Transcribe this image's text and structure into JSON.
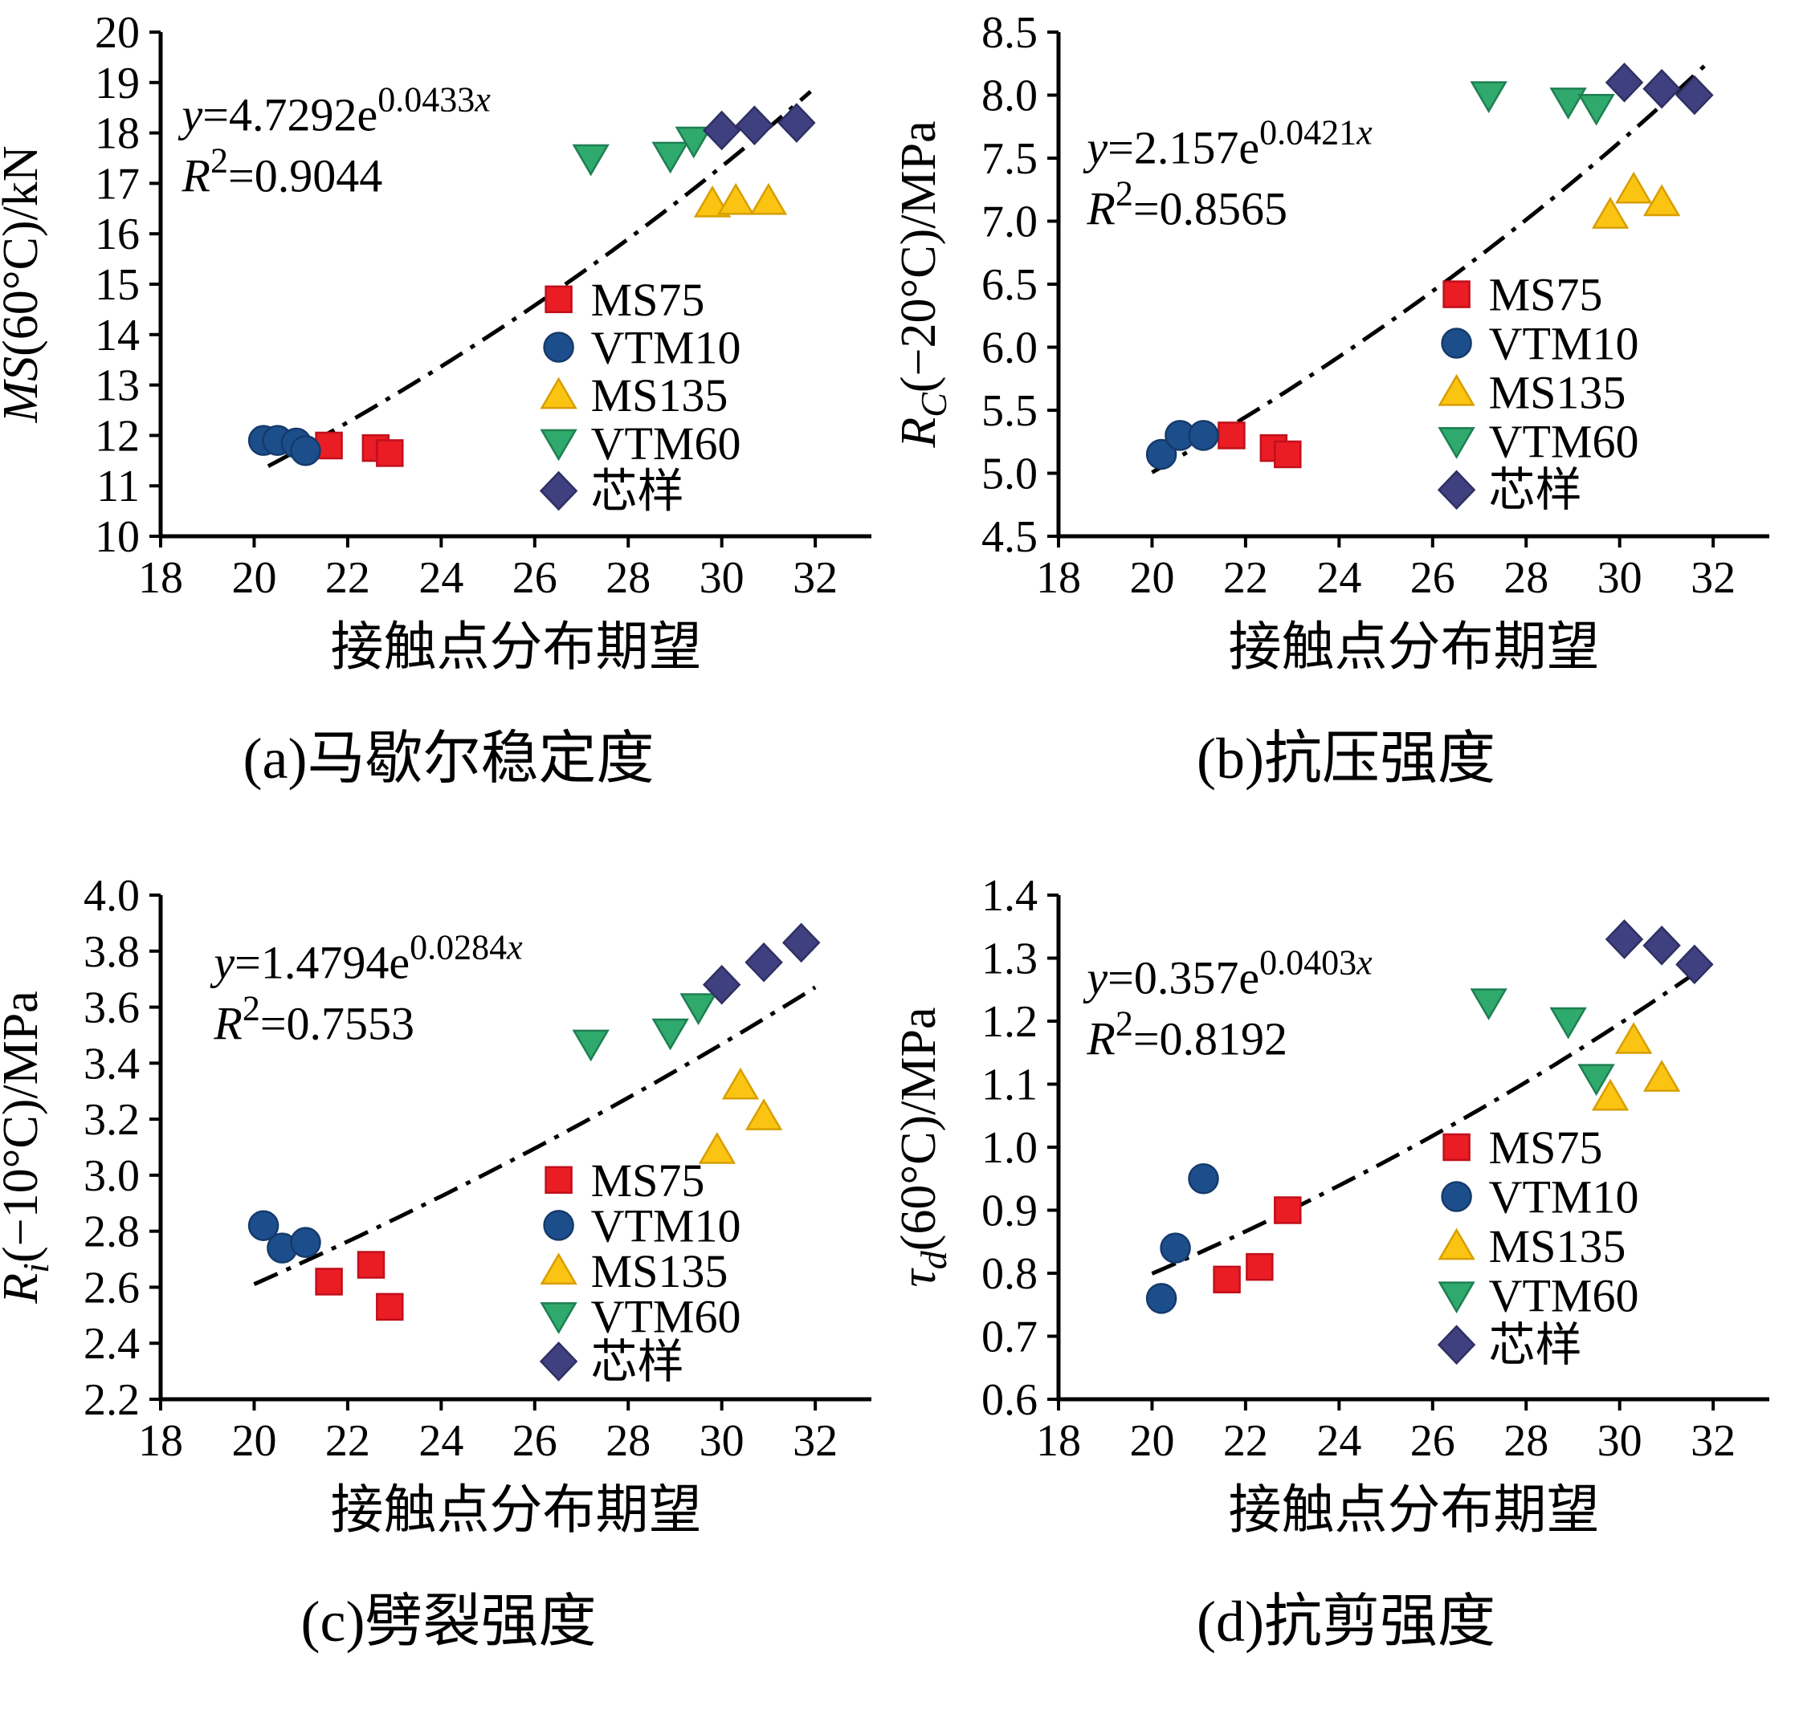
{
  "figure": {
    "background": "#ffffff",
    "line_color": "#000000",
    "marker_colors": {
      "MS75": "#ea1c24",
      "VTM10": "#1d4e8c",
      "MS135": "#fcc412",
      "VTM60": "#2faa6c",
      "core": "#3f4080"
    }
  },
  "chart_data": [
    {
      "id": "a",
      "type": "scatter",
      "caption": "(a)马歇尔稳定度",
      "xlabel": "接触点分布期望",
      "ylabel_segments": [
        {
          "t": "MS",
          "italic": true
        },
        {
          "t": "(60°C)/kN"
        }
      ],
      "equation_segments": [
        {
          "t": "y",
          "italic": true
        },
        {
          "t": "=4.7292e"
        },
        {
          "t": "0.0433",
          "sup": true
        },
        {
          "t": "x",
          "sup": true,
          "italic": true
        }
      ],
      "r2_segments": [
        {
          "t": "R",
          "italic": true
        },
        {
          "t": "2",
          "sup": true
        },
        {
          "t": "=0.9044"
        }
      ],
      "xlim": [
        18,
        33.2
      ],
      "ylim": [
        10,
        20
      ],
      "xticks": [
        18,
        20,
        22,
        24,
        26,
        28,
        30,
        32
      ],
      "yticks": [
        "10",
        "11",
        "12",
        "13",
        "14",
        "15",
        "16",
        "17",
        "18",
        "19",
        "20"
      ],
      "fit": {
        "a": 4.7292,
        "b": 0.0433,
        "x0": 20.3,
        "x1": 31.9
      },
      "eq_pos": [
        0.03,
        0.195
      ],
      "legend": {
        "x": 0.56,
        "y": 0.53,
        "dy": 0.095
      },
      "series": [
        {
          "name": "MS75",
          "marker": "square",
          "color": "#ea1c24",
          "edge": "#c0101c",
          "points": [
            [
              21.6,
              11.8
            ],
            [
              22.6,
              11.75
            ],
            [
              22.9,
              11.65
            ]
          ]
        },
        {
          "name": "VTM10",
          "marker": "circle",
          "color": "#1d4e8c",
          "edge": "#153a6b",
          "points": [
            [
              20.2,
              11.9
            ],
            [
              20.5,
              11.9
            ],
            [
              20.9,
              11.85
            ],
            [
              21.1,
              11.7
            ]
          ]
        },
        {
          "name": "MS135",
          "marker": "triangle-up",
          "color": "#fcc412",
          "edge": "#d79e00",
          "points": [
            [
              29.8,
              16.6
            ],
            [
              30.3,
              16.65
            ],
            [
              31.0,
              16.65
            ]
          ]
        },
        {
          "name": "VTM60",
          "marker": "triangle-down",
          "color": "#2faa6c",
          "edge": "#1e7f52",
          "points": [
            [
              27.2,
              17.5
            ],
            [
              28.9,
              17.55
            ],
            [
              29.4,
              17.85
            ]
          ]
        },
        {
          "name": "芯样",
          "marker": "diamond",
          "color": "#3f4080",
          "edge": "#2f3063",
          "points": [
            [
              30.0,
              18.05
            ],
            [
              30.7,
              18.15
            ],
            [
              31.6,
              18.2
            ]
          ]
        }
      ]
    },
    {
      "id": "b",
      "type": "scatter",
      "caption": "(b)抗压强度",
      "xlabel": "接触点分布期望",
      "ylabel_segments": [
        {
          "t": "R",
          "italic": true
        },
        {
          "t": "C",
          "italic": true,
          "sub": true
        },
        {
          "t": "(−20°C)/MPa"
        }
      ],
      "equation_segments": [
        {
          "t": "y",
          "italic": true
        },
        {
          "t": "=2.157e"
        },
        {
          "t": "0.0421",
          "sup": true
        },
        {
          "t": "x",
          "sup": true,
          "italic": true
        }
      ],
      "r2_segments": [
        {
          "t": "R",
          "italic": true
        },
        {
          "t": "2",
          "sup": true
        },
        {
          "t": "=0.8565"
        }
      ],
      "xlim": [
        18,
        33.2
      ],
      "ylim": [
        4.5,
        8.5
      ],
      "xticks": [
        18,
        20,
        22,
        24,
        26,
        28,
        30,
        32
      ],
      "yticks": [
        "4.5",
        "5.0",
        "5.5",
        "6.0",
        "6.5",
        "7.0",
        "7.5",
        "8.0",
        "8.5"
      ],
      "fit": {
        "a": 2.157,
        "b": 0.0421,
        "x0": 20.0,
        "x1": 31.9
      },
      "eq_pos": [
        0.04,
        0.26
      ],
      "legend": {
        "x": 0.56,
        "y": 0.52,
        "dy": 0.097
      },
      "series": [
        {
          "name": "MS75",
          "marker": "square",
          "color": "#ea1c24",
          "edge": "#c0101c",
          "points": [
            [
              21.7,
              5.3
            ],
            [
              22.6,
              5.2
            ],
            [
              22.9,
              5.15
            ]
          ]
        },
        {
          "name": "VTM10",
          "marker": "circle",
          "color": "#1d4e8c",
          "edge": "#153a6b",
          "points": [
            [
              20.2,
              5.15
            ],
            [
              20.6,
              5.3
            ],
            [
              21.1,
              5.3
            ]
          ]
        },
        {
          "name": "MS135",
          "marker": "triangle-up",
          "color": "#fcc412",
          "edge": "#d79e00",
          "points": [
            [
              29.8,
              7.05
            ],
            [
              30.3,
              7.25
            ],
            [
              30.9,
              7.15
            ]
          ]
        },
        {
          "name": "VTM60",
          "marker": "triangle-down",
          "color": "#2faa6c",
          "edge": "#1e7f52",
          "points": [
            [
              27.2,
              8.0
            ],
            [
              28.9,
              7.95
            ],
            [
              29.5,
              7.9
            ]
          ]
        },
        {
          "name": "芯样",
          "marker": "diamond",
          "color": "#3f4080",
          "edge": "#2f3063",
          "points": [
            [
              30.1,
              8.1
            ],
            [
              30.9,
              8.05
            ],
            [
              31.6,
              8.0
            ]
          ]
        }
      ]
    },
    {
      "id": "c",
      "type": "scatter",
      "caption": "(c)劈裂强度",
      "xlabel": "接触点分布期望",
      "ylabel_segments": [
        {
          "t": "R",
          "italic": true
        },
        {
          "t": "i",
          "italic": true,
          "sub": true
        },
        {
          "t": "(−10°C)/MPa"
        }
      ],
      "equation_segments": [
        {
          "t": "y",
          "italic": true
        },
        {
          "t": "=1.4794e"
        },
        {
          "t": "0.0284",
          "sup": true
        },
        {
          "t": "x",
          "sup": true,
          "italic": true
        }
      ],
      "r2_segments": [
        {
          "t": "R",
          "italic": true
        },
        {
          "t": "2",
          "sup": true
        },
        {
          "t": "=0.7553"
        }
      ],
      "xlim": [
        18,
        33.2
      ],
      "ylim": [
        2.2,
        4.0
      ],
      "xticks": [
        18,
        20,
        22,
        24,
        26,
        28,
        30,
        32
      ],
      "yticks": [
        "2.2",
        "2.4",
        "2.6",
        "2.8",
        "3.0",
        "3.2",
        "3.4",
        "3.6",
        "3.8",
        "4.0"
      ],
      "fit": {
        "a": 1.4794,
        "b": 0.0284,
        "x0": 20.0,
        "x1": 32.0
      },
      "eq_pos": [
        0.075,
        0.165
      ],
      "legend": {
        "x": 0.56,
        "y": 0.565,
        "dy": 0.09
      },
      "series": [
        {
          "name": "MS75",
          "marker": "square",
          "color": "#ea1c24",
          "edge": "#c0101c",
          "points": [
            [
              21.6,
              2.62
            ],
            [
              22.5,
              2.68
            ],
            [
              22.9,
              2.53
            ]
          ]
        },
        {
          "name": "VTM10",
          "marker": "circle",
          "color": "#1d4e8c",
          "edge": "#153a6b",
          "points": [
            [
              20.2,
              2.82
            ],
            [
              20.6,
              2.74
            ],
            [
              21.1,
              2.76
            ]
          ]
        },
        {
          "name": "MS135",
          "marker": "triangle-up",
          "color": "#fcc412",
          "edge": "#d79e00",
          "points": [
            [
              29.9,
              3.09
            ],
            [
              30.4,
              3.32
            ],
            [
              30.9,
              3.21
            ]
          ]
        },
        {
          "name": "VTM60",
          "marker": "triangle-down",
          "color": "#2faa6c",
          "edge": "#1e7f52",
          "points": [
            [
              27.2,
              3.47
            ],
            [
              28.9,
              3.51
            ],
            [
              29.5,
              3.6
            ]
          ]
        },
        {
          "name": "芯样",
          "marker": "diamond",
          "color": "#3f4080",
          "edge": "#2f3063",
          "points": [
            [
              30.0,
              3.68
            ],
            [
              30.9,
              3.76
            ],
            [
              31.7,
              3.83
            ]
          ]
        }
      ]
    },
    {
      "id": "d",
      "type": "scatter",
      "caption": "(d)抗剪强度",
      "xlabel": "接触点分布期望",
      "ylabel_segments": [
        {
          "t": "τ",
          "italic": true
        },
        {
          "t": "d",
          "italic": true,
          "sub": true
        },
        {
          "t": "(60°C)/MPa"
        }
      ],
      "equation_segments": [
        {
          "t": "y",
          "italic": true
        },
        {
          "t": "=0.357e"
        },
        {
          "t": "0.0403",
          "sup": true
        },
        {
          "t": "x",
          "sup": true,
          "italic": true
        }
      ],
      "r2_segments": [
        {
          "t": "R",
          "italic": true
        },
        {
          "t": "2",
          "sup": true
        },
        {
          "t": "=0.8192"
        }
      ],
      "xlim": [
        18,
        33.2
      ],
      "ylim": [
        0.6,
        1.4
      ],
      "xticks": [
        18,
        20,
        22,
        24,
        26,
        28,
        30,
        32
      ],
      "yticks": [
        "0.6",
        "0.7",
        "0.8",
        "0.9",
        "1.0",
        "1.1",
        "1.2",
        "1.3",
        "1.4"
      ],
      "fit": {
        "a": 0.357,
        "b": 0.0403,
        "x0": 20.0,
        "x1": 31.9
      },
      "eq_pos": [
        0.04,
        0.195
      ],
      "legend": {
        "x": 0.56,
        "y": 0.5,
        "dy": 0.098
      },
      "series": [
        {
          "name": "MS75",
          "marker": "square",
          "color": "#ea1c24",
          "edge": "#c0101c",
          "points": [
            [
              21.6,
              0.79
            ],
            [
              22.3,
              0.81
            ],
            [
              22.9,
              0.9
            ]
          ]
        },
        {
          "name": "VTM10",
          "marker": "circle",
          "color": "#1d4e8c",
          "edge": "#153a6b",
          "points": [
            [
              20.2,
              0.76
            ],
            [
              20.5,
              0.84
            ],
            [
              21.1,
              0.95
            ]
          ]
        },
        {
          "name": "MS135",
          "marker": "triangle-up",
          "color": "#fcc412",
          "edge": "#d79e00",
          "points": [
            [
              29.8,
              1.08
            ],
            [
              30.3,
              1.17
            ],
            [
              30.9,
              1.11
            ]
          ]
        },
        {
          "name": "VTM60",
          "marker": "triangle-down",
          "color": "#2faa6c",
          "edge": "#1e7f52",
          "points": [
            [
              27.2,
              1.23
            ],
            [
              28.9,
              1.2
            ],
            [
              29.5,
              1.11
            ]
          ]
        },
        {
          "name": "芯样",
          "marker": "diamond",
          "color": "#3f4080",
          "edge": "#2f3063",
          "points": [
            [
              30.1,
              1.33
            ],
            [
              30.9,
              1.32
            ],
            [
              31.6,
              1.29
            ]
          ]
        }
      ]
    }
  ]
}
